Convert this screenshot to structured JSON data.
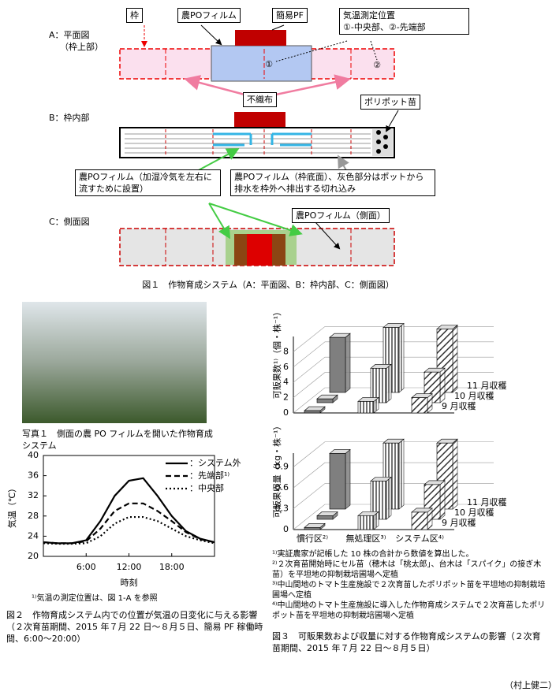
{
  "figure1": {
    "a_label": "A：平面図",
    "a_sub": "（枠上部）",
    "frame": "枠",
    "po_film": "農POフィルム",
    "simple_pf": "簡易PF",
    "temp_pos_title": "気温測定位置",
    "temp_pos_detail": "①-中央部、②-先端部",
    "pos1": "①",
    "pos2": "②",
    "nonwoven": "不織布",
    "b_label": "B：枠内部",
    "pot": "ポリポット苗",
    "film_side_note": "農POフィルム（加湿冷気を左右に流すために設置）",
    "film_bottom_note": "農POフィルム（枠底面）、灰色部分はポットから排水を枠外へ排出する切れ込み",
    "c_label": "C：側面図",
    "film_side": "農POフィルム（側面）",
    "caption": "図１　作物育成システム（A：平面図、B：枠内部、C：側面図）"
  },
  "photo": {
    "caption": "写真１　側面の農 PO フィルムを開いた作物育成システム"
  },
  "chart_data": [
    {
      "type": "line",
      "ylabel": "気温（℃）",
      "xlabel": "時刻",
      "x": [
        0,
        2,
        4,
        6,
        8,
        10,
        12,
        14,
        16,
        18,
        20,
        22,
        24
      ],
      "xlim": [
        0,
        24
      ],
      "xticks": [
        {
          "value": 6,
          "label": "6:00"
        },
        {
          "value": 12,
          "label": "12:00"
        },
        {
          "value": 18,
          "label": "18:00"
        }
      ],
      "ylim": [
        20,
        40
      ],
      "yticks": [
        20,
        24,
        28,
        32,
        36,
        40
      ],
      "series": [
        {
          "name": "：システム外",
          "color": "#000000",
          "style": "solid",
          "values": [
            22.8,
            22.6,
            22.6,
            23.2,
            27,
            32,
            35,
            35.5,
            32,
            28,
            25,
            23.5,
            22.8
          ]
        },
        {
          "name": "：先端部¹⁾",
          "color": "#000000",
          "style": "dashed",
          "values": [
            22.8,
            22.6,
            22.6,
            23.0,
            25.5,
            29,
            30.5,
            30.5,
            29,
            27,
            24.8,
            23.4,
            22.8
          ]
        },
        {
          "name": "：中央部",
          "color": "#000000",
          "style": "dotted",
          "values": [
            22.6,
            22.5,
            22.5,
            22.6,
            24,
            26.5,
            27.8,
            27.8,
            27,
            25.5,
            24,
            23.2,
            22.6
          ]
        }
      ],
      "footnote": "¹⁾気温の測定位置は、図 1-A を参照",
      "caption": "図２　作物育成システム内での位置が気温の日変化に与える影響（２次育苗期間、2015 年７月 22 日～８月５日、簡易 PF 稼働時間、6:00～20:00）"
    },
    {
      "type": "bar3d",
      "ylabel": "可販果数¹⁾（個・株⁻¹）",
      "ylim": [
        0,
        10
      ],
      "yticks": [
        0,
        2,
        4,
        6,
        8
      ],
      "grid": true,
      "patterns": [
        "solid",
        "vertical",
        "diagonal"
      ],
      "series": [
        {
          "name": "9 月収穫",
          "values": [
            0.3,
            1.5,
            2.0
          ]
        },
        {
          "name": "10 月収穫",
          "values": [
            0.5,
            4.5,
            4.0
          ]
        },
        {
          "name": "11 月収穫",
          "values": [
            7.2,
            8.5,
            8.3
          ]
        }
      ]
    },
    {
      "type": "bar3d",
      "ylabel": "可販果収量（kg・株⁻¹）",
      "categories": [
        "慣行区²⁾",
        "無処理区³⁾",
        "システム区⁴⁾"
      ],
      "ylim": [
        0,
        1.1
      ],
      "yticks": [
        0,
        0.3,
        0.6,
        0.9
      ],
      "grid": true,
      "patterns": [
        "solid",
        "vertical",
        "diagonal"
      ],
      "series": [
        {
          "name": "9 月収穫",
          "values": [
            0.03,
            0.2,
            0.25
          ]
        },
        {
          "name": "10 月収穫",
          "values": [
            0.05,
            0.55,
            0.5
          ]
        },
        {
          "name": "11 月収穫",
          "values": [
            0.8,
            0.95,
            0.95
          ]
        }
      ],
      "footnotes": [
        "¹⁾実証農家が記帳した 10 株の合計から数値を算出した。",
        "²⁾２次育苗開始時にセル苗（穂木は「桃太郎」、台木は「スパイク」の接ぎ木苗）を平坦地の抑制栽培圃場へ定植",
        "³⁾中山間地のトマト生産施設で２次育苗したポリポット苗を平坦地の抑制栽培圃場へ定植",
        "⁴⁾中山間地のトマト生産施設に導入した作物育成システムで２次育苗したポリポット苗を平坦地の抑制栽培圃場へ定植"
      ],
      "caption": "図３　可販果数および収量に対する作物育成システムの影響（２次育苗期間、2015 年７月 22 日～８月５日）"
    }
  ],
  "author": "（村上健二）"
}
